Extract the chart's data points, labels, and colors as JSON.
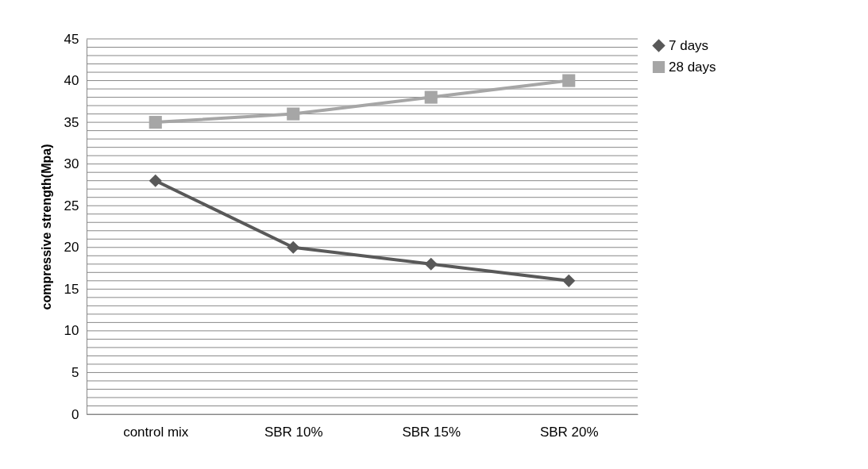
{
  "chart_data": {
    "type": "line",
    "ylabel": "compressive strength(Mpa)",
    "categories": [
      "control mix",
      "SBR 10%",
      "SBR 15%",
      "SBR 20%"
    ],
    "series": [
      {
        "name": "7 days",
        "color": "#595959",
        "marker": "diamond",
        "values": [
          28,
          20,
          18,
          16
        ]
      },
      {
        "name": "28 days",
        "color": "#a6a6a6",
        "marker": "square",
        "values": [
          35,
          36,
          38,
          40
        ]
      }
    ],
    "ylim": [
      0,
      45
    ],
    "yticks": [
      0,
      {
        "value": 1,
        "label": null
      },
      {
        "value": 2,
        "label": null
      },
      {
        "value": 3,
        "label": null
      },
      {
        "value": 4,
        "label": null
      },
      5,
      {
        "value": 6,
        "label": null
      },
      {
        "value": 7,
        "label": null
      },
      {
        "value": 8,
        "label": null
      },
      {
        "value": 9,
        "label": null
      },
      10,
      {
        "value": 11,
        "label": null
      },
      {
        "value": 12,
        "label": null
      },
      {
        "value": 13,
        "label": null
      },
      {
        "value": 14,
        "label": null
      },
      15,
      {
        "value": 16,
        "label": null
      },
      {
        "value": 17,
        "label": null
      },
      {
        "value": 18,
        "label": null
      },
      {
        "value": 19,
        "label": null
      },
      20,
      {
        "value": 21,
        "label": null
      },
      {
        "value": 22,
        "label": null
      },
      {
        "value": 23,
        "label": null
      },
      {
        "value": 24,
        "label": null
      },
      25,
      {
        "value": 26,
        "label": null
      },
      {
        "value": 27,
        "label": null
      },
      {
        "value": 28,
        "label": null
      },
      {
        "value": 29,
        "label": null
      },
      30,
      {
        "value": 31,
        "label": null
      },
      {
        "value": 32,
        "label": null
      },
      {
        "value": 33,
        "label": null
      },
      {
        "value": 34,
        "label": null
      },
      35,
      {
        "value": 36,
        "label": null
      },
      {
        "value": 37,
        "label": null
      },
      {
        "value": 38,
        "label": null
      },
      {
        "value": 39,
        "label": null
      },
      40,
      {
        "value": 41,
        "label": null
      },
      {
        "value": 42,
        "label": null
      },
      {
        "value": 43,
        "label": null
      },
      {
        "value": 44,
        "label": null
      },
      45
    ],
    "grid": true,
    "legend": "right",
    "line_style": "solid"
  }
}
